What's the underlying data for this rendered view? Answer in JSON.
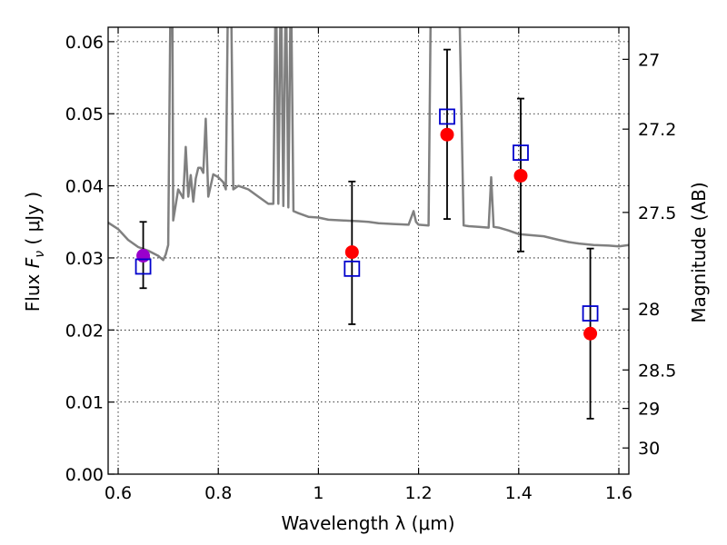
{
  "chart_data": {
    "type": "scatter",
    "xlabel": "Wavelength  λ (μm)",
    "ylabel": "Flux  F_ν  ( μJy )",
    "ylabel_parts": {
      "prefix": "Flux  ",
      "symbol": "F",
      "subscript": "ν",
      "unit": "  ( μJy )"
    },
    "ylabel_right": "Magnitude (AB)",
    "xlim": [
      0.58,
      1.62
    ],
    "ylim": [
      0.0,
      0.062
    ],
    "grid": true,
    "x_ticks": [
      0.6,
      0.8,
      1.0,
      1.2,
      1.4,
      1.6
    ],
    "x_tick_labels": [
      "0.6",
      "0.8",
      "1",
      "1.2",
      "1.4",
      "1.6"
    ],
    "y_ticks": [
      0.0,
      0.01,
      0.02,
      0.03,
      0.04,
      0.05,
      0.06
    ],
    "y_tick_labels": [
      "0.00",
      "0.01",
      "0.02",
      "0.03",
      "0.04",
      "0.05",
      "0.06"
    ],
    "right_ticks": [
      27,
      27.2,
      27.5,
      28,
      28.5,
      29,
      30
    ],
    "right_tick_labels": [
      "27",
      "27.2",
      "27.5",
      "28",
      "28.5",
      "29",
      "30"
    ],
    "colors": {
      "spectrum": "#808080",
      "observed": "#ff0000",
      "model": "#0000cc",
      "first_point": "#9900cc",
      "errorbar": "#000000"
    },
    "spectrum": {
      "x": [
        0.58,
        0.6,
        0.62,
        0.64,
        0.66,
        0.68,
        0.69,
        0.695,
        0.7,
        0.705,
        0.708,
        0.71,
        0.72,
        0.73,
        0.735,
        0.74,
        0.745,
        0.75,
        0.755,
        0.76,
        0.765,
        0.77,
        0.775,
        0.78,
        0.79,
        0.8,
        0.81,
        0.815,
        0.82,
        0.825,
        0.83,
        0.84,
        0.86,
        0.88,
        0.9,
        0.91,
        0.915,
        0.92,
        0.925,
        0.93,
        0.935,
        0.94,
        0.945,
        0.95,
        0.96,
        0.98,
        1.0,
        1.02,
        1.05,
        1.08,
        1.1,
        1.12,
        1.15,
        1.18,
        1.19,
        1.195,
        1.2,
        1.22,
        1.225,
        1.23,
        1.26,
        1.28,
        1.29,
        1.3,
        1.32,
        1.34,
        1.345,
        1.35,
        1.36,
        1.38,
        1.4,
        1.45,
        1.48,
        1.5,
        1.52,
        1.55,
        1.58,
        1.6,
        1.62
      ],
      "y": [
        0.0349,
        0.034,
        0.0325,
        0.0315,
        0.031,
        0.0303,
        0.0297,
        0.0305,
        0.0318,
        0.07,
        0.07,
        0.0352,
        0.0395,
        0.0383,
        0.0454,
        0.0385,
        0.0415,
        0.0378,
        0.041,
        0.0425,
        0.0425,
        0.0418,
        0.0493,
        0.0385,
        0.0416,
        0.0412,
        0.0405,
        0.0395,
        0.07,
        0.07,
        0.0395,
        0.04,
        0.0395,
        0.0385,
        0.0375,
        0.0375,
        0.07,
        0.0375,
        0.07,
        0.0372,
        0.07,
        0.037,
        0.07,
        0.0365,
        0.0362,
        0.0357,
        0.0356,
        0.0353,
        0.0352,
        0.0351,
        0.035,
        0.0348,
        0.0347,
        0.0346,
        0.0365,
        0.035,
        0.0346,
        0.0345,
        0.07,
        0.07,
        0.07,
        0.07,
        0.0345,
        0.0344,
        0.0343,
        0.0342,
        0.0412,
        0.0343,
        0.0342,
        0.0338,
        0.0333,
        0.033,
        0.0325,
        0.0322,
        0.032,
        0.0318,
        0.0317,
        0.0316,
        0.0318
      ]
    },
    "points": [
      {
        "x": 0.65,
        "observed": 0.0303,
        "model": 0.0288,
        "err_low": 0.0258,
        "err_high": 0.035,
        "marker": "purple"
      },
      {
        "x": 1.067,
        "observed": 0.0308,
        "model": 0.0285,
        "err_low": 0.0208,
        "err_high": 0.0406,
        "marker": "red"
      },
      {
        "x": 1.257,
        "observed": 0.0471,
        "model": 0.0496,
        "err_low": 0.0354,
        "err_high": 0.0589,
        "marker": "red"
      },
      {
        "x": 1.404,
        "observed": 0.0414,
        "model": 0.0446,
        "err_low": 0.0309,
        "err_high": 0.0521,
        "marker": "red"
      },
      {
        "x": 1.543,
        "observed": 0.0195,
        "model": 0.0223,
        "err_low": 0.0077,
        "err_high": 0.0313,
        "marker": "red"
      }
    ]
  }
}
